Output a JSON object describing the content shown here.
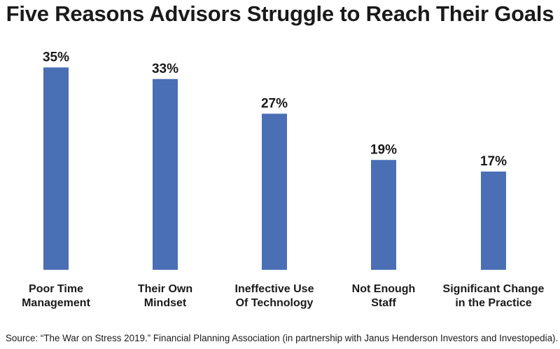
{
  "title": "Five Reasons Advisors Struggle to Reach Their Goals",
  "source": "Source:  “The War on Stress 2019.” Financial Planning Association (in partnership with Janus Henderson Investors and Investopedia).",
  "colors": {
    "bar": "#4a6fb5",
    "text": "#1a1a1a",
    "background": "#ffffff"
  },
  "chart_data": {
    "type": "bar",
    "title": "Five Reasons Advisors Struggle to Reach Their Goals",
    "categories": [
      [
        "Poor Time",
        "Management"
      ],
      [
        "Their Own",
        "Mindset"
      ],
      [
        "Ineffective Use",
        "Of Technology"
      ],
      [
        "Not Enough",
        "Staff"
      ],
      [
        "Significant Change",
        "in the Practice"
      ]
    ],
    "values": [
      35,
      33,
      27,
      19,
      17
    ],
    "value_labels": [
      "35%",
      "33%",
      "27%",
      "19%",
      "17%"
    ],
    "unit": "%",
    "xlabel": "",
    "ylabel": "",
    "ylim": [
      0,
      35
    ],
    "grid": false,
    "legend": "none"
  }
}
